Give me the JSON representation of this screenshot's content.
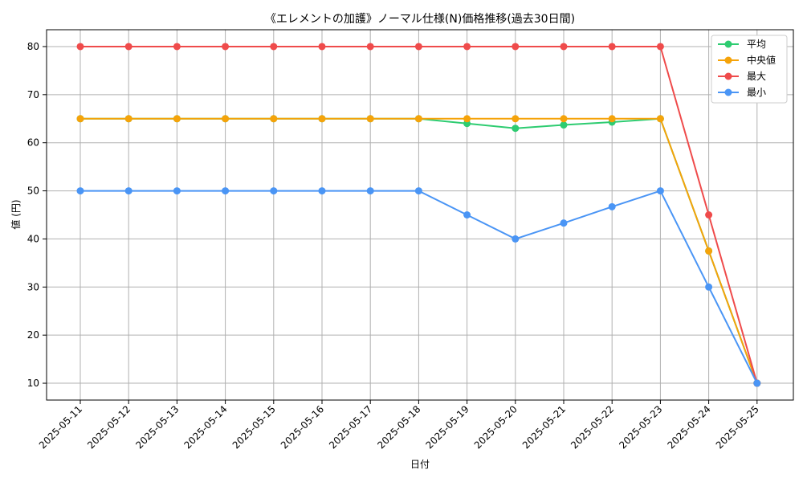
{
  "chart_data": {
    "type": "line",
    "title": "《エレメントの加護》ノーマル仕様(N)価格推移(過去30日間)",
    "xlabel": "日付",
    "ylabel": "値 (円)",
    "categories": [
      "2025-05-11",
      "2025-05-12",
      "2025-05-13",
      "2025-05-14",
      "2025-05-15",
      "2025-05-16",
      "2025-05-17",
      "2025-05-18",
      "2025-05-19",
      "2025-05-20",
      "2025-05-21",
      "2025-05-22",
      "2025-05-23",
      "2025-05-24",
      "2025-05-25"
    ],
    "y_ticks": [
      10,
      20,
      30,
      40,
      50,
      60,
      70,
      80
    ],
    "ylim": [
      6.5,
      83.5
    ],
    "grid": true,
    "legend_position": "top-right",
    "series": [
      {
        "name": "平均",
        "color": "#2ecc71",
        "values": [
          65,
          65,
          65,
          65,
          65,
          65,
          65,
          65,
          64,
          63,
          63.7,
          64.3,
          65,
          37.5,
          10
        ]
      },
      {
        "name": "中央値",
        "color": "#f5a30a",
        "values": [
          65,
          65,
          65,
          65,
          65,
          65,
          65,
          65,
          65,
          65,
          65,
          65,
          65,
          37.5,
          10
        ]
      },
      {
        "name": "最大",
        "color": "#ef4b4b",
        "values": [
          80,
          80,
          80,
          80,
          80,
          80,
          80,
          80,
          80,
          80,
          80,
          80,
          80,
          45,
          10
        ]
      },
      {
        "name": "最小",
        "color": "#4a95f5",
        "values": [
          50,
          50,
          50,
          50,
          50,
          50,
          50,
          50,
          45,
          40,
          43.3,
          46.7,
          50,
          30,
          10
        ]
      }
    ]
  }
}
